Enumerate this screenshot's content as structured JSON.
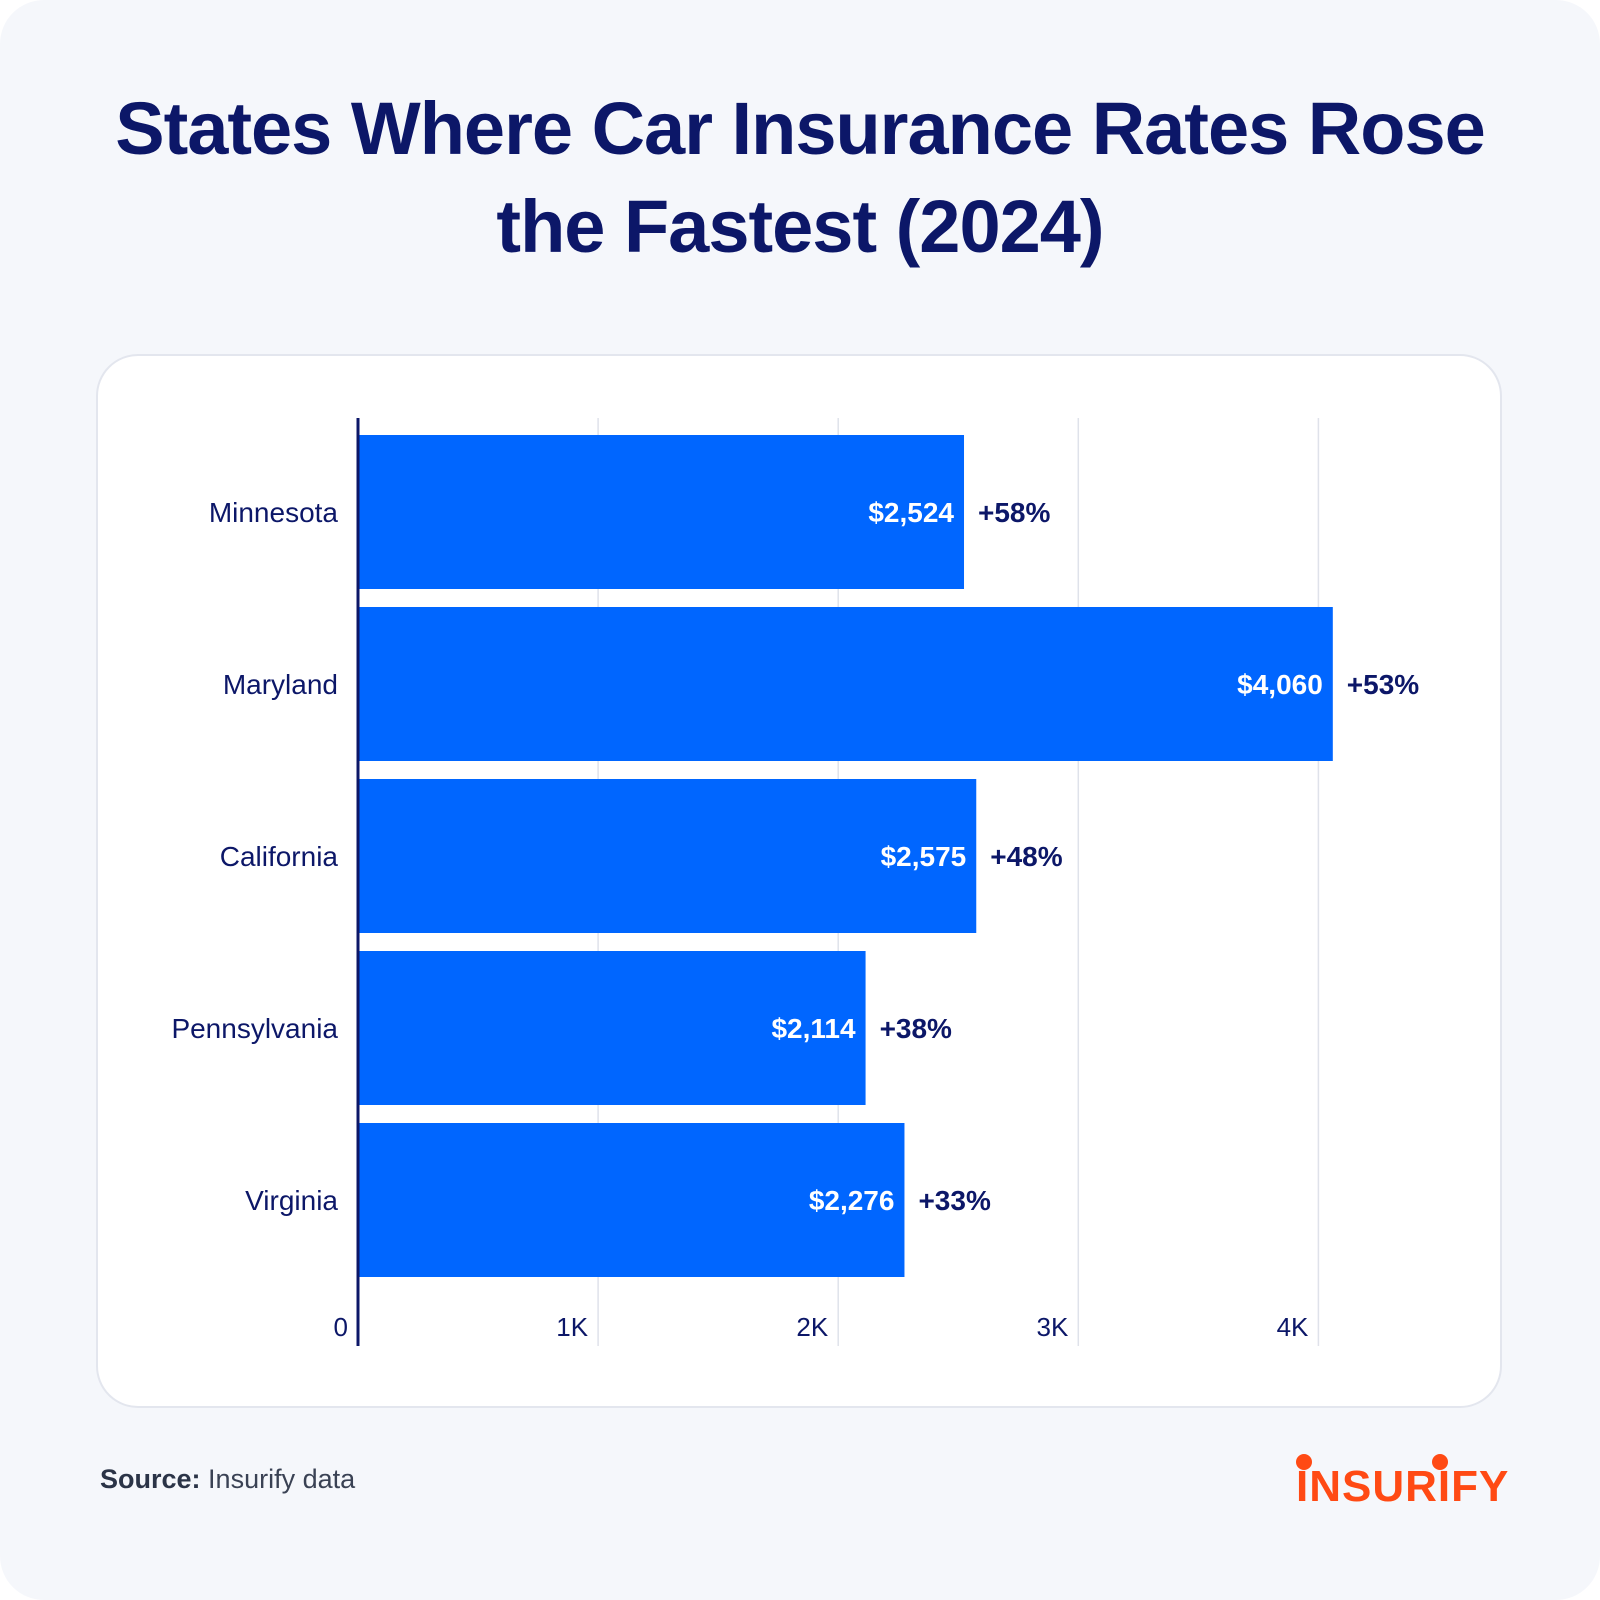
{
  "title": "States Where Car Insurance Rates Rose the Fastest (2024)",
  "source": {
    "label": "Source:",
    "text": "Insurify data"
  },
  "logo": {
    "text": "INSURIFY"
  },
  "colors": {
    "bar": "#0066ff",
    "text": "#0c1768",
    "logo": "#ff4a14",
    "background": "#f5f7fb"
  },
  "chart_data": {
    "type": "bar",
    "orientation": "horizontal",
    "title": "States Where Car Insurance Rates Rose the Fastest (2024)",
    "categories": [
      "Minnesota",
      "Maryland",
      "California",
      "Pennsylvania",
      "Virginia"
    ],
    "values": [
      2524,
      4060,
      2575,
      2114,
      2276
    ],
    "value_labels": [
      "$2,524",
      "$4,060",
      "$2,575",
      "$2,114",
      "$2,276"
    ],
    "change_labels": [
      "+58%",
      "+53%",
      "+48%",
      "+38%",
      "+33%"
    ],
    "xlim": [
      0,
      4250
    ],
    "xticks": [
      0,
      1000,
      2000,
      3000,
      4000
    ],
    "xtick_labels": [
      "0",
      "1K",
      "2K",
      "3K",
      "4K"
    ],
    "grid": true,
    "xlabel": "",
    "ylabel": ""
  }
}
